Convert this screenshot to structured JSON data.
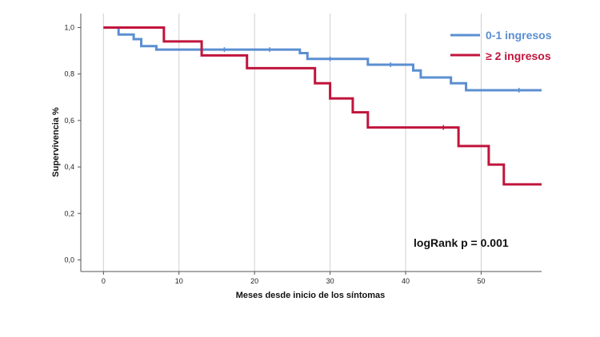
{
  "chart_data": {
    "type": "line",
    "subtype": "step",
    "xlabel": "Meses desde inicio de los síntomas",
    "ylabel": "Supervivencia %",
    "xlim": [
      -3,
      58
    ],
    "ylim": [
      -0.05,
      1.06
    ],
    "x_ticks": [
      0,
      10,
      20,
      30,
      40,
      50
    ],
    "x_tick_labels": [
      "0",
      "10",
      "20",
      "30",
      "40",
      "50"
    ],
    "y_ticks": [
      0.0,
      0.2,
      0.4,
      0.6,
      0.8,
      1.0
    ],
    "y_tick_labels": [
      "0,0",
      "0,2",
      "0,4",
      "0,6",
      "0,8",
      "1,0"
    ],
    "grid": "vertical",
    "legend_position": "top-right",
    "annotation": "logRank p = 0.001",
    "series": [
      {
        "name": "0-1 ingresos",
        "color": "#5b8fd1",
        "points": [
          [
            0,
            1.0
          ],
          [
            2,
            0.97
          ],
          [
            4,
            0.95
          ],
          [
            5,
            0.92
          ],
          [
            7,
            0.905
          ],
          [
            26,
            0.89
          ],
          [
            27,
            0.865
          ],
          [
            35,
            0.84
          ],
          [
            41,
            0.815
          ],
          [
            42,
            0.785
          ],
          [
            46,
            0.76
          ],
          [
            48,
            0.73
          ],
          [
            58,
            0.73
          ]
        ],
        "censored": [
          [
            16,
            0.905
          ],
          [
            22,
            0.905
          ],
          [
            30,
            0.865
          ],
          [
            38,
            0.84
          ],
          [
            55,
            0.73
          ]
        ]
      },
      {
        "name": "≥ 2 ingresos",
        "color": "#c0143c",
        "points": [
          [
            0,
            1.0
          ],
          [
            8,
            0.94
          ],
          [
            13,
            0.88
          ],
          [
            19,
            0.825
          ],
          [
            28,
            0.76
          ],
          [
            30,
            0.695
          ],
          [
            33,
            0.635
          ],
          [
            35,
            0.57
          ],
          [
            47,
            0.49
          ],
          [
            51,
            0.41
          ],
          [
            53,
            0.325
          ],
          [
            58,
            0.325
          ]
        ],
        "censored": [
          [
            45,
            0.57
          ]
        ]
      }
    ]
  }
}
